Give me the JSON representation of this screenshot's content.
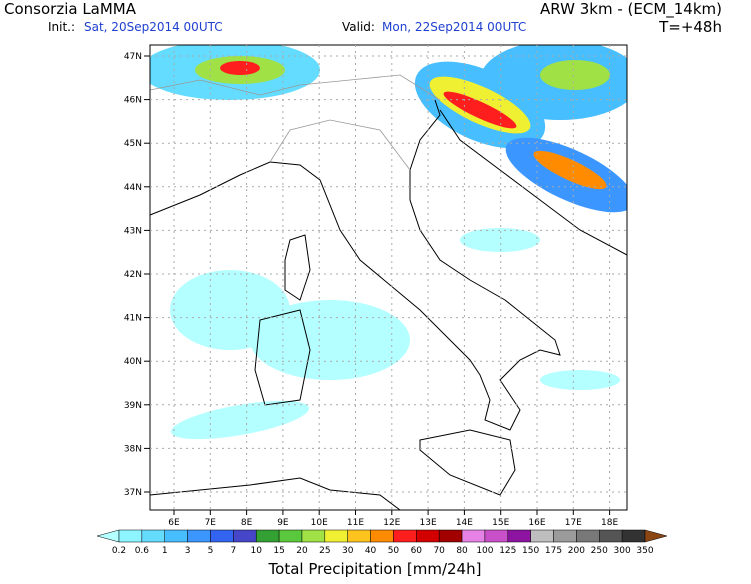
{
  "header": {
    "source": "Consorzia LaMMA",
    "init_label": "Init.:",
    "init_date": "Sat, 20Sep2014 00UTC",
    "model": "ARW 3km - (ECM_14km)",
    "valid_label": "Valid:",
    "valid_date": "Mon, 22Sep2014 00UTC",
    "lead": "T=+48h"
  },
  "map": {
    "lat_labels": [
      "47N",
      "46N",
      "45N",
      "44N",
      "43N",
      "42N",
      "41N",
      "40N",
      "39N",
      "38N",
      "37N"
    ],
    "lon_labels": [
      "6E",
      "7E",
      "8E",
      "9E",
      "10E",
      "11E",
      "12E",
      "13E",
      "14E",
      "15E",
      "16E",
      "17E",
      "18E"
    ]
  },
  "colorbar": {
    "labels": [
      0.2,
      0.6,
      1,
      3,
      5,
      7,
      10,
      15,
      20,
      25,
      30,
      40,
      50,
      60,
      70,
      80,
      100,
      125,
      150,
      175,
      200,
      250,
      300,
      350
    ],
    "colors": [
      "#b4ffff",
      "#8cf5ff",
      "#64dcff",
      "#46beff",
      "#3c96ff",
      "#3264f0",
      "#4646c8",
      "#32a032",
      "#5ac83c",
      "#a0e146",
      "#f0f032",
      "#ffc31e",
      "#ff8c00",
      "#ff1e1e",
      "#d20000",
      "#a00000",
      "#e682e6",
      "#c850c8",
      "#8c14a0",
      "#bebebe",
      "#9b9b9b",
      "#787878",
      "#555555",
      "#323232",
      "#8c4614"
    ],
    "title": "Total Precipitation [mm/24h]"
  }
}
